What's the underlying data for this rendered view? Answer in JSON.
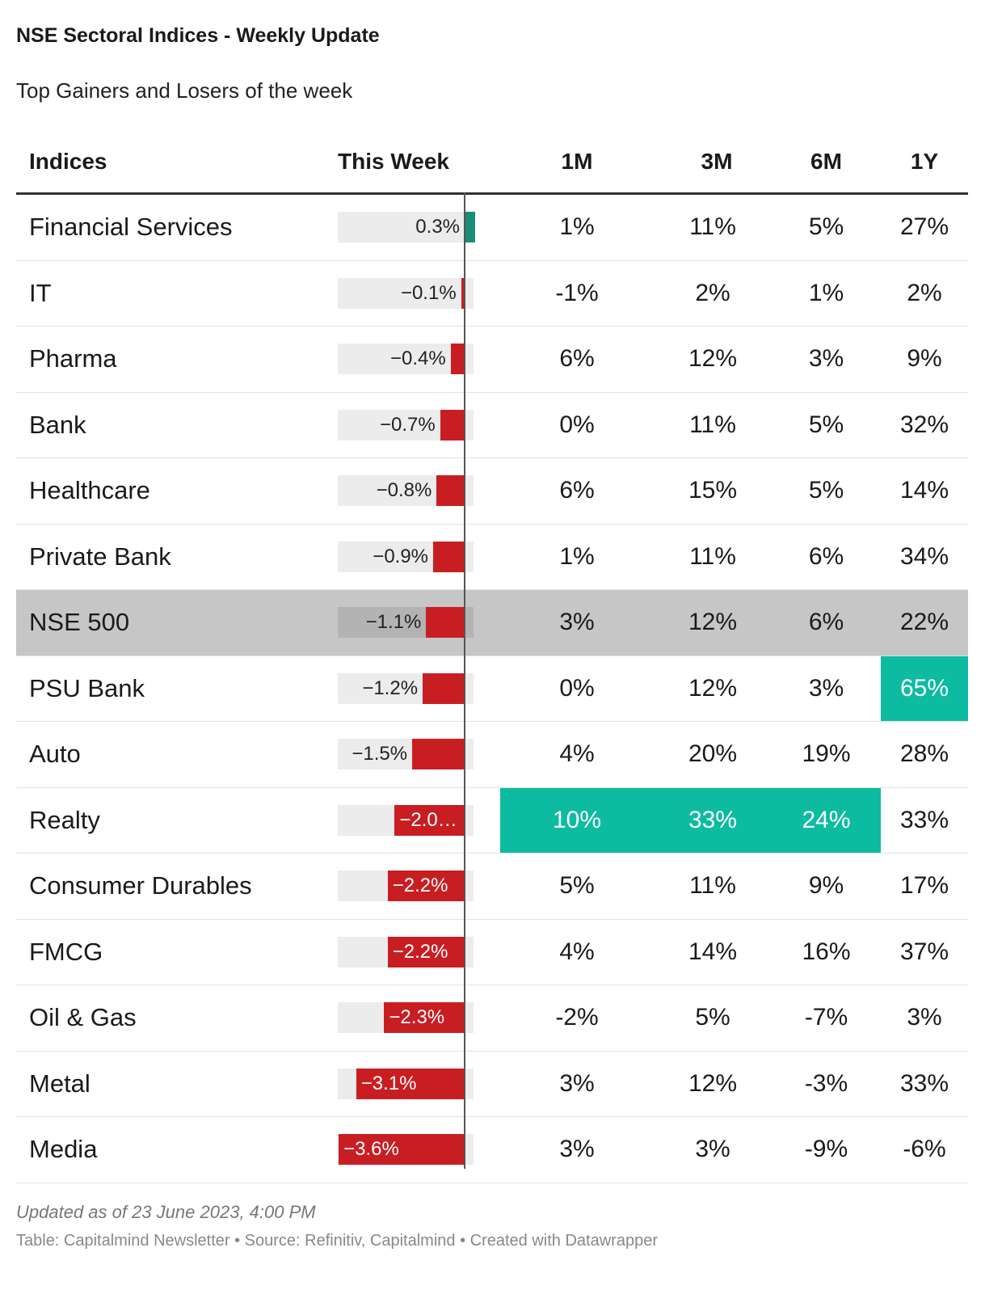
{
  "title": "NSE Sectoral Indices - Weekly Update",
  "subtitle": "Top Gainers and Losers of the week",
  "columns": [
    "Indices",
    "This Week",
    "1M",
    "3M",
    "6M",
    "1Y"
  ],
  "colors": {
    "positive": "#1a8f76",
    "negative": "#c81e22",
    "highlight_cell": "#0cbba0",
    "highlight_row": "#c6c6c6"
  },
  "chart_data": {
    "type": "table",
    "bar_column": "This Week",
    "rows": [
      {
        "name": "Financial Services",
        "week": 0.3,
        "week_label": "0.3%",
        "m1": "1%",
        "m3": "11%",
        "m6": "5%",
        "y1": "27%"
      },
      {
        "name": "IT",
        "week": -0.1,
        "week_label": "−0.1%",
        "m1": "-1%",
        "m3": "2%",
        "m6": "1%",
        "y1": "2%"
      },
      {
        "name": "Pharma",
        "week": -0.4,
        "week_label": "−0.4%",
        "m1": "6%",
        "m3": "12%",
        "m6": "3%",
        "y1": "9%"
      },
      {
        "name": "Bank",
        "week": -0.7,
        "week_label": "−0.7%",
        "m1": "0%",
        "m3": "11%",
        "m6": "5%",
        "y1": "32%"
      },
      {
        "name": "Healthcare",
        "week": -0.8,
        "week_label": "−0.8%",
        "m1": "6%",
        "m3": "15%",
        "m6": "5%",
        "y1": "14%"
      },
      {
        "name": "Private Bank",
        "week": -0.9,
        "week_label": "−0.9%",
        "m1": "1%",
        "m3": "11%",
        "m6": "6%",
        "y1": "34%"
      },
      {
        "name": "NSE 500",
        "week": -1.1,
        "week_label": "−1.1%",
        "m1": "3%",
        "m3": "12%",
        "m6": "6%",
        "y1": "22%",
        "highlight_row": true
      },
      {
        "name": "PSU Bank",
        "week": -1.2,
        "week_label": "−1.2%",
        "m1": "0%",
        "m3": "12%",
        "m6": "3%",
        "y1": "65%",
        "hl": [
          "y1"
        ]
      },
      {
        "name": "Auto",
        "week": -1.5,
        "week_label": "−1.5%",
        "m1": "4%",
        "m3": "20%",
        "m6": "19%",
        "y1": "28%"
      },
      {
        "name": "Realty",
        "week": -2.0,
        "week_label": "−2.0…",
        "m1": "10%",
        "m3": "33%",
        "m6": "24%",
        "y1": "33%",
        "hl": [
          "m1",
          "m3",
          "m6"
        ]
      },
      {
        "name": "Consumer Durables",
        "week": -2.2,
        "week_label": "−2.2%",
        "m1": "5%",
        "m3": "11%",
        "m6": "9%",
        "y1": "17%"
      },
      {
        "name": "FMCG",
        "week": -2.2,
        "week_label": "−2.2%",
        "m1": "4%",
        "m3": "14%",
        "m6": "16%",
        "y1": "37%"
      },
      {
        "name": "Oil & Gas",
        "week": -2.3,
        "week_label": "−2.3%",
        "m1": "-2%",
        "m3": "5%",
        "m6": "-7%",
        "y1": "3%"
      },
      {
        "name": "Metal",
        "week": -3.1,
        "week_label": "−3.1%",
        "m1": "3%",
        "m3": "12%",
        "m6": "-3%",
        "y1": "33%"
      },
      {
        "name": "Media",
        "week": -3.6,
        "week_label": "−3.6%",
        "m1": "3%",
        "m3": "3%",
        "m6": "-9%",
        "y1": "-6%"
      }
    ]
  },
  "footer": {
    "updated": "Updated as of 23 June 2023, 4:00 PM",
    "source": "Table: Capitalmind Newsletter • Source: Refinitiv, Capitalmind • Created with Datawrapper"
  }
}
